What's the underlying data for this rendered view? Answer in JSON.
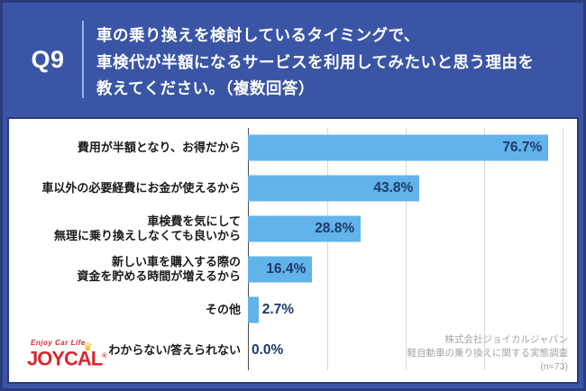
{
  "header": {
    "q_label": "Q9",
    "question_lines": [
      "車の乗り換えを検討しているタイミングで、",
      "車検代が半額になるサービスを利用してみたいと思う理由を",
      "教えてください。（複数回答）"
    ]
  },
  "chart_data": {
    "type": "bar",
    "orientation": "horizontal",
    "categories": [
      [
        "費用が半額となり、お得だから"
      ],
      [
        "車以外の必要経費にお金が使えるから"
      ],
      [
        "車検費を気にして",
        "無理に乗り換えしなくても良いから"
      ],
      [
        "新しい車を購入する際の",
        "資金を貯める時間が増えるから"
      ],
      [
        "その他"
      ],
      [
        "わからない/答えられない"
      ]
    ],
    "values": [
      76.7,
      43.8,
      28.8,
      16.4,
      2.7,
      0.0
    ],
    "value_labels": [
      "76.7%",
      "43.8%",
      "28.8%",
      "16.4%",
      "2.7%",
      "0.0%"
    ],
    "xlim": [
      0,
      84
    ],
    "gridlines": [
      20,
      40,
      60,
      80
    ],
    "grid_on": true,
    "legend": "none",
    "inside_label_threshold": 15
  },
  "footer": {
    "logo": {
      "tagline": "Enjoy Car Life",
      "brand": "JOYCAL",
      "reg": "®",
      "crown_glyph": "♛"
    },
    "source_lines": [
      "株式会社ジョイカルジャパン",
      "軽自動車の乗り換えに関する実態調査",
      "(n=73)"
    ]
  },
  "colors": {
    "background": "#3A55A5",
    "frame": "#2B3B7E",
    "bar": "#62B3E9",
    "value_text": "#1E3A6B",
    "category_text": "#1A1A1A",
    "gridline": "#D9D9D9",
    "source_text": "#A3A3A3",
    "logo_red": "#D7282F",
    "crown_yellow": "#F2B705",
    "header_text": "#FFFFFF"
  }
}
